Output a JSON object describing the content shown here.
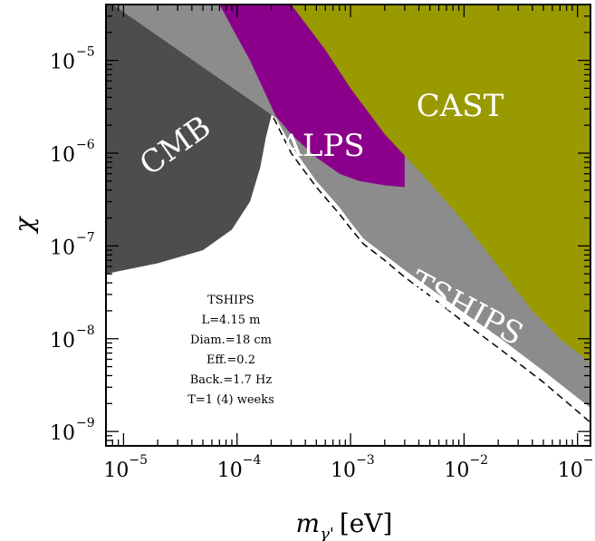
{
  "chart_data": {
    "type": "area",
    "xlabel_main": "m",
    "xlabel_sub": "γ'",
    "xlabel_unit": "[eV]",
    "ylabel": "χ",
    "x_scale": "log",
    "y_scale": "log",
    "xlim": [
      7e-06,
      0.13
    ],
    "ylim": [
      7e-10,
      4e-05
    ],
    "x_ticks": [
      {
        "value": 1e-05,
        "base": "10",
        "exp": "−5"
      },
      {
        "value": 0.0001,
        "base": "10",
        "exp": "−4"
      },
      {
        "value": 0.001,
        "base": "10",
        "exp": "−3"
      },
      {
        "value": 0.01,
        "base": "10",
        "exp": "−2"
      },
      {
        "value": 0.1,
        "base": "10",
        "exp": "−1"
      }
    ],
    "y_ticks": [
      {
        "value": 1e-09,
        "base": "10",
        "exp": "−9"
      },
      {
        "value": 1e-08,
        "base": "10",
        "exp": "−8"
      },
      {
        "value": 1e-07,
        "base": "10",
        "exp": "−7"
      },
      {
        "value": 1e-06,
        "base": "10",
        "exp": "−6"
      },
      {
        "value": 1e-05,
        "base": "10",
        "exp": "−5"
      }
    ],
    "regions": [
      {
        "name": "CMB",
        "color": "#4d4d4d",
        "boundary": [
          [
            7e-06,
            5e-08
          ],
          [
            2e-05,
            6.5e-08
          ],
          [
            5e-05,
            9e-08
          ],
          [
            9e-05,
            1.5e-07
          ],
          [
            0.00013,
            3e-07
          ],
          [
            0.00016,
            7e-07
          ],
          [
            0.00018,
            1.5e-06
          ],
          [
            0.0002,
            2.5e-06
          ],
          [
            0.00021,
            3.3e-06
          ],
          [
            0.00013,
            1e-05
          ],
          [
            7e-05,
            4e-05
          ]
        ]
      },
      {
        "name": "TSHIPS",
        "color": "#8c8c8c",
        "boundary": [
          [
            0.00022,
            2.4e-06
          ],
          [
            0.0003,
            1.2e-06
          ],
          [
            0.0005,
            5e-07
          ],
          [
            0.0008,
            2.6e-07
          ],
          [
            0.001,
            1.8e-07
          ],
          [
            0.0013,
            1.2e-07
          ],
          [
            0.002,
            8e-08
          ],
          [
            0.003,
            5.5e-08
          ],
          [
            0.005,
            3.5e-08
          ],
          [
            0.01,
            1.9e-08
          ],
          [
            0.02,
            1.05e-08
          ],
          [
            0.05,
            4.5e-09
          ],
          [
            0.13,
            1.8e-09
          ]
        ]
      },
      {
        "name": "ALPS",
        "color": "#8b008b",
        "boundary": [
          [
            7e-05,
            4e-05
          ],
          [
            0.00013,
            1e-05
          ],
          [
            0.00022,
            2.5e-06
          ],
          [
            0.0003,
            1.6e-06
          ],
          [
            0.0005,
            9e-07
          ],
          [
            0.0008,
            6e-07
          ],
          [
            0.0012,
            5e-07
          ],
          [
            0.002,
            4.5e-07
          ],
          [
            0.003,
            4.3e-07
          ]
        ]
      },
      {
        "name": "CAST",
        "color": "#999900",
        "boundary": [
          [
            0.0003,
            4e-05
          ],
          [
            0.0006,
            1.3e-05
          ],
          [
            0.001,
            5e-06
          ],
          [
            0.002,
            1.6e-06
          ],
          [
            0.005,
            4.8e-07
          ],
          [
            0.01,
            1.8e-07
          ],
          [
            0.02,
            6e-08
          ],
          [
            0.04,
            2e-08
          ],
          [
            0.07,
            1e-08
          ],
          [
            0.13,
            5.5e-09
          ]
        ]
      }
    ],
    "dashed_line": [
      [
        0.00021,
        2.4e-06
      ],
      [
        0.0003,
        1e-06
      ],
      [
        0.0005,
        4.3e-07
      ],
      [
        0.0008,
        2.2e-07
      ],
      [
        0.001,
        1.55e-07
      ],
      [
        0.0013,
        1.05e-07
      ],
      [
        0.002,
        7e-08
      ],
      [
        0.003,
        4.6e-08
      ],
      [
        0.005,
        2.9e-08
      ],
      [
        0.01,
        1.5e-08
      ],
      [
        0.02,
        8e-09
      ],
      [
        0.05,
        3.4e-09
      ],
      [
        0.13,
        1.25e-09
      ]
    ]
  },
  "labels": {
    "cmb": "CMB",
    "alps": "ALPS",
    "cast": "CAST",
    "tships": "TSHIPS"
  },
  "info_box": {
    "lines": [
      "TSHIPS",
      "L=4.15 m",
      "Diam.=18 cm",
      "Eff.=0.2",
      "Back.=1.7 Hz",
      "T=1 (4) weeks"
    ]
  }
}
